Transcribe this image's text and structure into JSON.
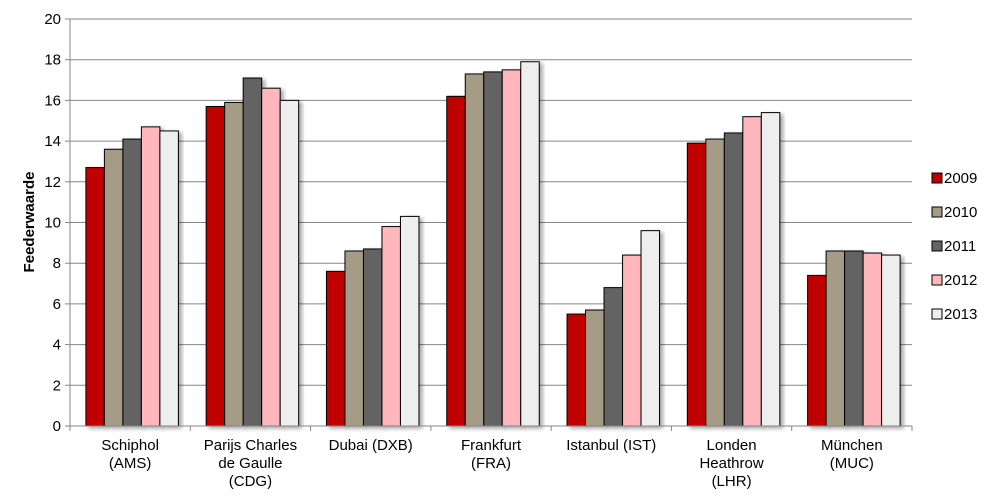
{
  "chart_data": {
    "type": "bar",
    "title": "",
    "xlabel": "",
    "ylabel": "Feederwaarde",
    "ylim": [
      0,
      20
    ],
    "yticks": [
      0,
      2,
      4,
      6,
      8,
      10,
      12,
      14,
      16,
      18,
      20
    ],
    "grid": true,
    "legend_position": "right",
    "categories": [
      [
        "Schiphol",
        "(AMS)"
      ],
      [
        "Parijs Charles",
        "de Gaulle",
        "(CDG)"
      ],
      [
        "Dubai (DXB)"
      ],
      [
        "Frankfurt",
        "(FRA)"
      ],
      [
        "Istanbul (IST)"
      ],
      [
        "Londen",
        "Heathrow",
        "(LHR)"
      ],
      [
        "München",
        "(MUC)"
      ]
    ],
    "series": [
      {
        "name": "2009",
        "color": "#c00000",
        "values": [
          12.7,
          15.7,
          7.6,
          16.2,
          5.5,
          13.9,
          7.4
        ]
      },
      {
        "name": "2010",
        "color": "#a69b86",
        "values": [
          13.6,
          15.9,
          8.6,
          17.3,
          5.7,
          14.1,
          8.6
        ]
      },
      {
        "name": "2011",
        "color": "#646464",
        "values": [
          14.1,
          17.1,
          8.7,
          17.4,
          6.8,
          14.4,
          8.6
        ]
      },
      {
        "name": "2012",
        "color": "#ffb6bc",
        "values": [
          14.7,
          16.6,
          9.8,
          17.5,
          8.4,
          15.2,
          8.5
        ]
      },
      {
        "name": "2013",
        "color": "#eeeeee",
        "values": [
          14.5,
          16.0,
          10.3,
          17.9,
          9.6,
          15.4,
          8.4
        ]
      }
    ]
  }
}
